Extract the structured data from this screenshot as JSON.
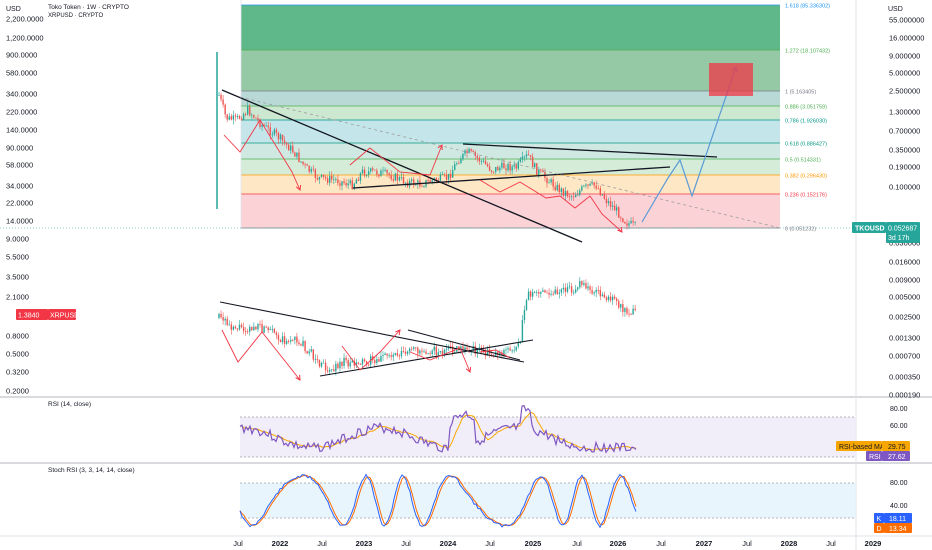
{
  "header": {
    "currency": "USD",
    "title": "Toko Token · 1W · CRYPTO",
    "subtitle": "XRPUSD · CRYPTO"
  },
  "right_axis_currency": "USD",
  "colors": {
    "up": "#26a69a",
    "down": "#ef5350",
    "tko_badge": "#26a69a",
    "xrp_badge": "#f23645",
    "rsi_line": "#7e57c2",
    "rsi_ma": "#f7a600",
    "stoch_k": "#2962ff",
    "stoch_d": "#ff6d00",
    "arrow_red": "#f23645",
    "arrow_blue": "#5b9bd5",
    "trend_black": "#131722"
  },
  "price_pane": {
    "left_axis_ticks": [
      "2,200.0000",
      "1,200.0000",
      "900.0000",
      "580.0000",
      "340.0000",
      "220.0000",
      "140.0000",
      "90.0000",
      "58.0000",
      "34.0000",
      "22.0000",
      "14.0000",
      "9.0000",
      "5.5000",
      "3.5000",
      "2.1000",
      "1.3840",
      "0.8000",
      "0.5000",
      "0.3200",
      "0.2000"
    ],
    "right_axis_ticks": [
      "55.000000",
      "16.000000",
      "9.000000",
      "5.000000",
      "2.500000",
      "1.300000",
      "0.700000",
      "0.350000",
      "0.190000",
      "0.100000",
      "0.030000",
      "0.016000",
      "0.009000",
      "0.005000",
      "0.002500",
      "0.001300",
      "0.000700",
      "0.000350",
      "0.000190"
    ],
    "tko_badge": {
      "symbol": "TKOUSD",
      "price": "0.052687",
      "countdown": "3d 17h"
    },
    "xrp_badge": {
      "price": "1.3840",
      "symbol": "XRPUSD"
    },
    "fib_levels": [
      {
        "ratio": "1.618",
        "label": "1.618 (85.336302)",
        "color": "#2196f3",
        "fill": "#5fb88a"
      },
      {
        "ratio": "1.272",
        "label": "1.272 (18.107432)",
        "color": "#4caf50",
        "fill": "#95c9a6"
      },
      {
        "ratio": "1",
        "label": "1 (5.163405)",
        "color": "#787b86",
        "fill": "#b8d9d6"
      },
      {
        "ratio": "0.886",
        "label": "0.886 (3.051759)",
        "color": "#4caf50",
        "fill": "#cde8d1"
      },
      {
        "ratio": "0.786",
        "label": "0.786 (1.926030)",
        "color": "#009688",
        "fill": "#c4e6ea"
      },
      {
        "ratio": "0.618",
        "label": "0.618 (0.886427)",
        "color": "#089981",
        "fill": "#cfe9e2"
      },
      {
        "ratio": "0.5",
        "label": "0.5 (0.514331)",
        "color": "#4caf50",
        "fill": "#d5ecd8"
      },
      {
        "ratio": "0.382",
        "label": "0.382 (0.296430)",
        "color": "#ff9800",
        "fill": "#fde7c5"
      },
      {
        "ratio": "0.236",
        "label": "0.236 (0.152176)",
        "color": "#f23645",
        "fill": "#fbd2d6"
      },
      {
        "ratio": "0",
        "label": "0 (0.051232)",
        "color": "#787b86",
        "fill": "none"
      }
    ]
  },
  "rsi_pane": {
    "title": "RSI (14, close)",
    "ticks": [
      "80.00",
      "60.00",
      "20.00"
    ],
    "ma_label": "RSI-based MA",
    "ma_value": "29.75",
    "rsi_label": "RSI",
    "rsi_value": "27.62"
  },
  "stoch_pane": {
    "title": "Stoch RSI (3, 3, 14, 14, close)",
    "ticks": [
      "80.00",
      "40.00"
    ],
    "k_label": "K",
    "k_value": "18.11",
    "d_label": "D",
    "d_value": "13.34"
  },
  "time_axis": [
    "Jul",
    "2022",
    "Jul",
    "2023",
    "Jul",
    "2024",
    "Jul",
    "2025",
    "Jul",
    "2026",
    "Jul",
    "2027",
    "Jul",
    "2028",
    "Jul",
    "2029"
  ],
  "chart_data": {
    "type": "candlestick",
    "title": "Toko Token · 1W · CRYPTO",
    "series": [
      {
        "name": "TKOUSD",
        "scale": "log",
        "last": 0.052687,
        "x": [
          "2021-06",
          "2021-09",
          "2021-12",
          "2022-03",
          "2022-06",
          "2022-09",
          "2022-12",
          "2023-03",
          "2023-06",
          "2023-09",
          "2023-12",
          "2024-03",
          "2024-06",
          "2024-09",
          "2024-12",
          "2025-03",
          "2025-06",
          "2025-09",
          "2025-12",
          "2026-03"
        ],
        "close": [
          3.8,
          1.9,
          1.6,
          1.1,
          0.45,
          0.36,
          0.22,
          0.3,
          0.28,
          0.24,
          0.3,
          0.85,
          0.42,
          0.42,
          0.6,
          0.24,
          0.16,
          0.28,
          0.1,
          0.053
        ]
      },
      {
        "name": "XRPUSD",
        "scale": "log",
        "last": 1.384,
        "x": [
          "2021-06",
          "2021-09",
          "2021-12",
          "2022-03",
          "2022-06",
          "2022-09",
          "2022-12",
          "2023-03",
          "2023-06",
          "2023-09",
          "2023-12",
          "2024-03",
          "2024-06",
          "2024-09",
          "2024-12",
          "2025-03",
          "2025-06",
          "2025-09",
          "2025-12",
          "2026-03"
        ],
        "close": [
          0.9,
          1.0,
          0.85,
          0.75,
          0.35,
          0.45,
          0.34,
          0.38,
          0.48,
          0.5,
          0.6,
          0.62,
          0.47,
          0.58,
          2.3,
          2.4,
          2.2,
          2.9,
          1.9,
          1.38
        ]
      },
      {
        "name": "RSI",
        "last": 27.62
      },
      {
        "name": "RSI-based MA",
        "last": 29.75
      },
      {
        "name": "K",
        "last": 18.11
      },
      {
        "name": "D",
        "last": 13.34
      }
    ]
  }
}
